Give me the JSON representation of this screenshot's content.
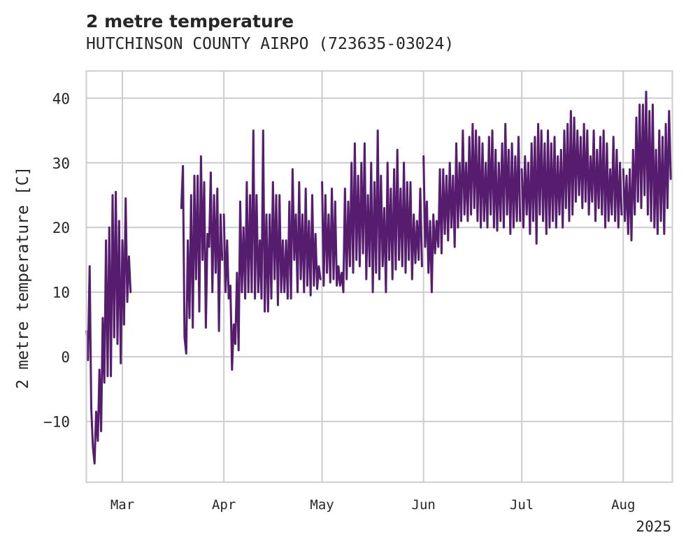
{
  "chart_data": {
    "type": "line",
    "title": "2 metre temperature",
    "subtitle": "HUTCHINSON COUNTY AIRPO (723635-03024)",
    "ylabel": "2 metre temperature [C]",
    "xlabel": "",
    "year_label": "2025",
    "ylim": [
      -19.4,
      44.2
    ],
    "xlim": [
      "2025-02-18",
      "2025-08-16"
    ],
    "grid": true,
    "legend": "none",
    "line_color": "#561d6f",
    "y_ticks": [
      {
        "value": -10,
        "label": "−10"
      },
      {
        "value": 0,
        "label": "0"
      },
      {
        "value": 10,
        "label": "10"
      },
      {
        "value": 20,
        "label": "20"
      },
      {
        "value": 30,
        "label": "30"
      },
      {
        "value": 40,
        "label": "40"
      }
    ],
    "x_ticks": [
      {
        "date": "2025-03-01",
        "label": "Mar"
      },
      {
        "date": "2025-04-01",
        "label": "Apr"
      },
      {
        "date": "2025-05-01",
        "label": "May"
      },
      {
        "date": "2025-06-01",
        "label": "Jun"
      },
      {
        "date": "2025-07-01",
        "label": "Jul"
      },
      {
        "date": "2025-08-01",
        "label": "Aug"
      }
    ],
    "series": [
      {
        "segments": [
          {
            "x": [
              "2025-02-18",
              "2025-02-18T12:00",
              "2025-02-19",
              "2025-02-19T12:00",
              "2025-02-20",
              "2025-02-20T12:00",
              "2025-02-21",
              "2025-02-21T12:00",
              "2025-02-22",
              "2025-02-22T12:00",
              "2025-02-23",
              "2025-02-23T12:00",
              "2025-02-24",
              "2025-02-24T12:00",
              "2025-02-25",
              "2025-02-25T12:00",
              "2025-02-26",
              "2025-02-26T12:00",
              "2025-02-27",
              "2025-02-27T12:00",
              "2025-02-28",
              "2025-02-28T12:00",
              "2025-03-01",
              "2025-03-01T12:00"
            ],
            "y": [
              4,
              -0.5,
              14,
              -8,
              -14,
              -16.5,
              -8.5,
              -13,
              -2,
              -11.5,
              6,
              -4,
              18,
              -3,
              20,
              -3,
              25,
              3,
              25.5,
              2,
              21,
              -1,
              18,
              5
            ]
          },
          {
            "x": [
              "2025-03-01",
              "2025-03-01T12:00",
              "2025-03-02",
              "2025-03-02T12:00",
              "2025-03-03",
              "2025-03-03T12:00"
            ],
            "y": [
              18,
              5,
              24.5,
              8.5,
              15.5,
              10
            ]
          },
          {
            "x": [
              "2025-03-19",
              "2025-03-19T12:00",
              "2025-03-20",
              "2025-03-20T12:00",
              "2025-03-21",
              "2025-03-21T12:00",
              "2025-03-22",
              "2025-03-22T12:00",
              "2025-03-23",
              "2025-03-23T12:00",
              "2025-03-24",
              "2025-03-24T12:00",
              "2025-03-25",
              "2025-03-25T12:00",
              "2025-03-26",
              "2025-03-26T12:00",
              "2025-03-27",
              "2025-03-27T12:00",
              "2025-03-28",
              "2025-03-28T12:00",
              "2025-03-29",
              "2025-03-29T12:00",
              "2025-03-30",
              "2025-03-30T12:00",
              "2025-03-31",
              "2025-03-31T12:00"
            ],
            "y": [
              23,
              29.5,
              3,
              0.5,
              18,
              6,
              25,
              4.5,
              28,
              12,
              28,
              7,
              31,
              15,
              27,
              4.5,
              19,
              17,
              28.5,
              10,
              25,
              13,
              26,
              4,
              22,
              15
            ]
          },
          {
            "x": [
              "2025-04-01",
              "2025-04-01T12:00",
              "2025-04-02",
              "2025-04-02T12:00",
              "2025-04-03",
              "2025-04-03T12:00",
              "2025-04-04",
              "2025-04-04T12:00",
              "2025-04-05",
              "2025-04-05T12:00",
              "2025-04-06",
              "2025-04-06T12:00",
              "2025-04-07",
              "2025-04-07T12:00",
              "2025-04-08",
              "2025-04-08T12:00",
              "2025-04-09",
              "2025-04-09T12:00",
              "2025-04-10",
              "2025-04-10T12:00",
              "2025-04-11",
              "2025-04-11T12:00",
              "2025-04-12",
              "2025-04-12T12:00",
              "2025-04-13",
              "2025-04-13T12:00",
              "2025-04-14",
              "2025-04-14T12:00",
              "2025-04-15",
              "2025-04-15T12:00",
              "2025-04-16",
              "2025-04-16T12:00",
              "2025-04-17",
              "2025-04-17T12:00",
              "2025-04-18",
              "2025-04-18T12:00",
              "2025-04-19",
              "2025-04-19T12:00",
              "2025-04-20",
              "2025-04-20T12:00",
              "2025-04-21",
              "2025-04-21T12:00",
              "2025-04-22",
              "2025-04-22T12:00",
              "2025-04-23",
              "2025-04-23T12:00",
              "2025-04-24",
              "2025-04-24T12:00",
              "2025-04-25",
              "2025-04-25T12:00",
              "2025-04-26",
              "2025-04-26T12:00",
              "2025-04-27",
              "2025-04-27T12:00",
              "2025-04-28",
              "2025-04-28T12:00",
              "2025-04-29",
              "2025-04-29T12:00",
              "2025-04-30",
              "2025-04-30T12:00"
            ],
            "y": [
              22,
              10,
              18,
              9,
              11,
              -2,
              5,
              2,
              13,
              1,
              24,
              10,
              20,
              9,
              27,
              10,
              25,
              10,
              35,
              9,
              25,
              10,
              18,
              9,
              35,
              7,
              22,
              7,
              22,
              9,
              27,
              12,
              25,
              8,
              25,
              10,
              18,
              10,
              18,
              9,
              24,
              9,
              29,
              15,
              22,
              10,
              27,
              12,
              22,
              10,
              26,
              11,
              21,
              9.5,
              25,
              11,
              19,
              10.5,
              14,
              12
            ]
          },
          {
            "x": [
              "2025-05-01",
              "2025-05-01T12:00",
              "2025-05-02",
              "2025-05-02T12:00",
              "2025-05-03",
              "2025-05-03T12:00",
              "2025-05-04",
              "2025-05-04T12:00",
              "2025-05-05",
              "2025-05-05T12:00",
              "2025-05-06",
              "2025-05-06T12:00",
              "2025-05-07",
              "2025-05-07T12:00",
              "2025-05-08",
              "2025-05-08T12:00",
              "2025-05-09",
              "2025-05-09T12:00",
              "2025-05-10",
              "2025-05-10T12:00",
              "2025-05-11",
              "2025-05-11T12:00",
              "2025-05-12",
              "2025-05-12T12:00",
              "2025-05-13",
              "2025-05-13T12:00",
              "2025-05-14",
              "2025-05-14T12:00",
              "2025-05-15",
              "2025-05-15T12:00",
              "2025-05-16",
              "2025-05-16T12:00",
              "2025-05-17",
              "2025-05-17T12:00",
              "2025-05-18",
              "2025-05-18T12:00",
              "2025-05-19",
              "2025-05-19T12:00",
              "2025-05-20",
              "2025-05-20T12:00",
              "2025-05-21",
              "2025-05-21T12:00",
              "2025-05-22",
              "2025-05-22T12:00",
              "2025-05-23",
              "2025-05-23T12:00",
              "2025-05-24",
              "2025-05-24T12:00",
              "2025-05-25",
              "2025-05-25T12:00",
              "2025-05-26",
              "2025-05-26T12:00",
              "2025-05-27",
              "2025-05-27T12:00",
              "2025-05-28",
              "2025-05-28T12:00",
              "2025-05-29",
              "2025-05-29T12:00",
              "2025-05-30",
              "2025-05-30T12:00",
              "2025-05-31",
              "2025-05-31T12:00"
            ],
            "y": [
              27,
              11,
              25,
              13,
              22,
              11.5,
              26,
              12,
              24,
              11,
              14,
              11,
              13,
              10,
              26,
              12,
              24,
              14,
              30,
              13,
              33,
              15,
              28,
              14,
              30,
              16,
              33,
              12,
              25,
              14,
              30,
              10,
              27,
              13,
              35,
              12,
              28,
              14,
              23,
              10,
              30,
              15,
              26,
              12,
              29,
              13.5,
              32,
              15,
              26,
              14,
              30,
              13,
              27,
              15,
              27,
              12,
              22,
              14.5,
              21,
              15,
              26,
              14
            ]
          },
          {
            "x": [
              "2025-06-01",
              "2025-06-01T12:00",
              "2025-06-02",
              "2025-06-02T12:00",
              "2025-06-03",
              "2025-06-03T12:00",
              "2025-06-04",
              "2025-06-04T12:00",
              "2025-06-05",
              "2025-06-05T12:00",
              "2025-06-06",
              "2025-06-06T12:00",
              "2025-06-07",
              "2025-06-07T12:00",
              "2025-06-08",
              "2025-06-08T12:00",
              "2025-06-09",
              "2025-06-09T12:00",
              "2025-06-10",
              "2025-06-10T12:00",
              "2025-06-11",
              "2025-06-11T12:00",
              "2025-06-12",
              "2025-06-12T12:00",
              "2025-06-13",
              "2025-06-13T12:00",
              "2025-06-14",
              "2025-06-14T12:00",
              "2025-06-15",
              "2025-06-15T12:00",
              "2025-06-16",
              "2025-06-16T12:00",
              "2025-06-17",
              "2025-06-17T12:00",
              "2025-06-18",
              "2025-06-18T12:00",
              "2025-06-19",
              "2025-06-19T12:00",
              "2025-06-20",
              "2025-06-20T12:00",
              "2025-06-21",
              "2025-06-21T12:00",
              "2025-06-22",
              "2025-06-22T12:00",
              "2025-06-23",
              "2025-06-23T12:00",
              "2025-06-24",
              "2025-06-24T12:00",
              "2025-06-25",
              "2025-06-25T12:00",
              "2025-06-26",
              "2025-06-26T12:00",
              "2025-06-27",
              "2025-06-27T12:00",
              "2025-06-28",
              "2025-06-28T12:00",
              "2025-06-29",
              "2025-06-29T12:00",
              "2025-06-30",
              "2025-06-30T12:00"
            ],
            "y": [
              31,
              17,
              24,
              13,
              21,
              10,
              22,
              16,
              21,
              17,
              29,
              16,
              29,
              19,
              28,
              18,
              30,
              20,
              28,
              17,
              33,
              20,
              30,
              21,
              35,
              22,
              30,
              21,
              34,
              22,
              36,
              23,
              35,
              21,
              34,
              20,
              33,
              21,
              30,
              20,
              34,
              22,
              35,
              20,
              32,
              19.5,
              30,
              21,
              33,
              20,
              36,
              22,
              32,
              19,
              33,
              20,
              31,
              21,
              34,
              21
            ]
          },
          {
            "x": [
              "2025-07-01",
              "2025-07-01T12:00",
              "2025-07-02",
              "2025-07-02T12:00",
              "2025-07-03",
              "2025-07-03T12:00",
              "2025-07-04",
              "2025-07-04T12:00",
              "2025-07-05",
              "2025-07-05T12:00",
              "2025-07-06",
              "2025-07-06T12:00",
              "2025-07-07",
              "2025-07-07T12:00",
              "2025-07-08",
              "2025-07-08T12:00",
              "2025-07-09",
              "2025-07-09T12:00",
              "2025-07-10",
              "2025-07-10T12:00",
              "2025-07-11",
              "2025-07-11T12:00",
              "2025-07-12",
              "2025-07-12T12:00",
              "2025-07-13",
              "2025-07-13T12:00",
              "2025-07-14",
              "2025-07-14T12:00",
              "2025-07-15",
              "2025-07-15T12:00",
              "2025-07-16",
              "2025-07-16T12:00",
              "2025-07-17",
              "2025-07-17T12:00",
              "2025-07-18",
              "2025-07-18T12:00",
              "2025-07-19",
              "2025-07-19T12:00",
              "2025-07-20",
              "2025-07-20T12:00",
              "2025-07-21",
              "2025-07-21T12:00",
              "2025-07-22",
              "2025-07-22T12:00",
              "2025-07-23",
              "2025-07-23T12:00",
              "2025-07-24",
              "2025-07-24T12:00",
              "2025-07-25",
              "2025-07-25T12:00",
              "2025-07-26",
              "2025-07-26T12:00",
              "2025-07-27",
              "2025-07-27T12:00",
              "2025-07-28",
              "2025-07-28T12:00",
              "2025-07-29",
              "2025-07-29T12:00",
              "2025-07-30",
              "2025-07-30T12:00",
              "2025-07-31",
              "2025-07-31T12:00"
            ],
            "y": [
              29,
              20,
              31,
              22,
              30,
              19,
              33,
              21,
              34,
              17.5,
              36,
              22,
              35,
              21,
              33,
              19,
              35,
              20,
              33,
              21,
              34,
              20,
              31,
              22,
              32,
              20,
              35,
              23,
              36,
              21,
              38,
              22,
              37,
              24,
              35,
              25,
              34,
              23,
              36,
              24,
              35,
              22,
              31,
              24,
              35,
              21,
              32,
              23,
              34,
              22,
              35,
              20,
              33,
              21,
              29,
              22,
              34,
              21,
              32,
              20,
              30,
              22
            ]
          },
          {
            "x": [
              "2025-08-01",
              "2025-08-01T12:00",
              "2025-08-02",
              "2025-08-02T12:00",
              "2025-08-03",
              "2025-08-03T12:00",
              "2025-08-04",
              "2025-08-04T12:00",
              "2025-08-05",
              "2025-08-05T12:00",
              "2025-08-06",
              "2025-08-06T12:00",
              "2025-08-07",
              "2025-08-07T12:00",
              "2025-08-08",
              "2025-08-08T12:00",
              "2025-08-09",
              "2025-08-09T12:00",
              "2025-08-10",
              "2025-08-10T12:00",
              "2025-08-11",
              "2025-08-11T12:00",
              "2025-08-12",
              "2025-08-12T12:00",
              "2025-08-13",
              "2025-08-13T12:00",
              "2025-08-14",
              "2025-08-14T12:00",
              "2025-08-15",
              "2025-08-15T12:00"
            ],
            "y": [
              29,
              21,
              28,
              19,
              29,
              18,
              32,
              22,
              37,
              24,
              39,
              23,
              39,
              25,
              41,
              22,
              38,
              21,
              39,
              20,
              32,
              19,
              35,
              21,
              34,
              19,
              36,
              23,
              38,
              27.5
            ]
          }
        ]
      }
    ]
  }
}
